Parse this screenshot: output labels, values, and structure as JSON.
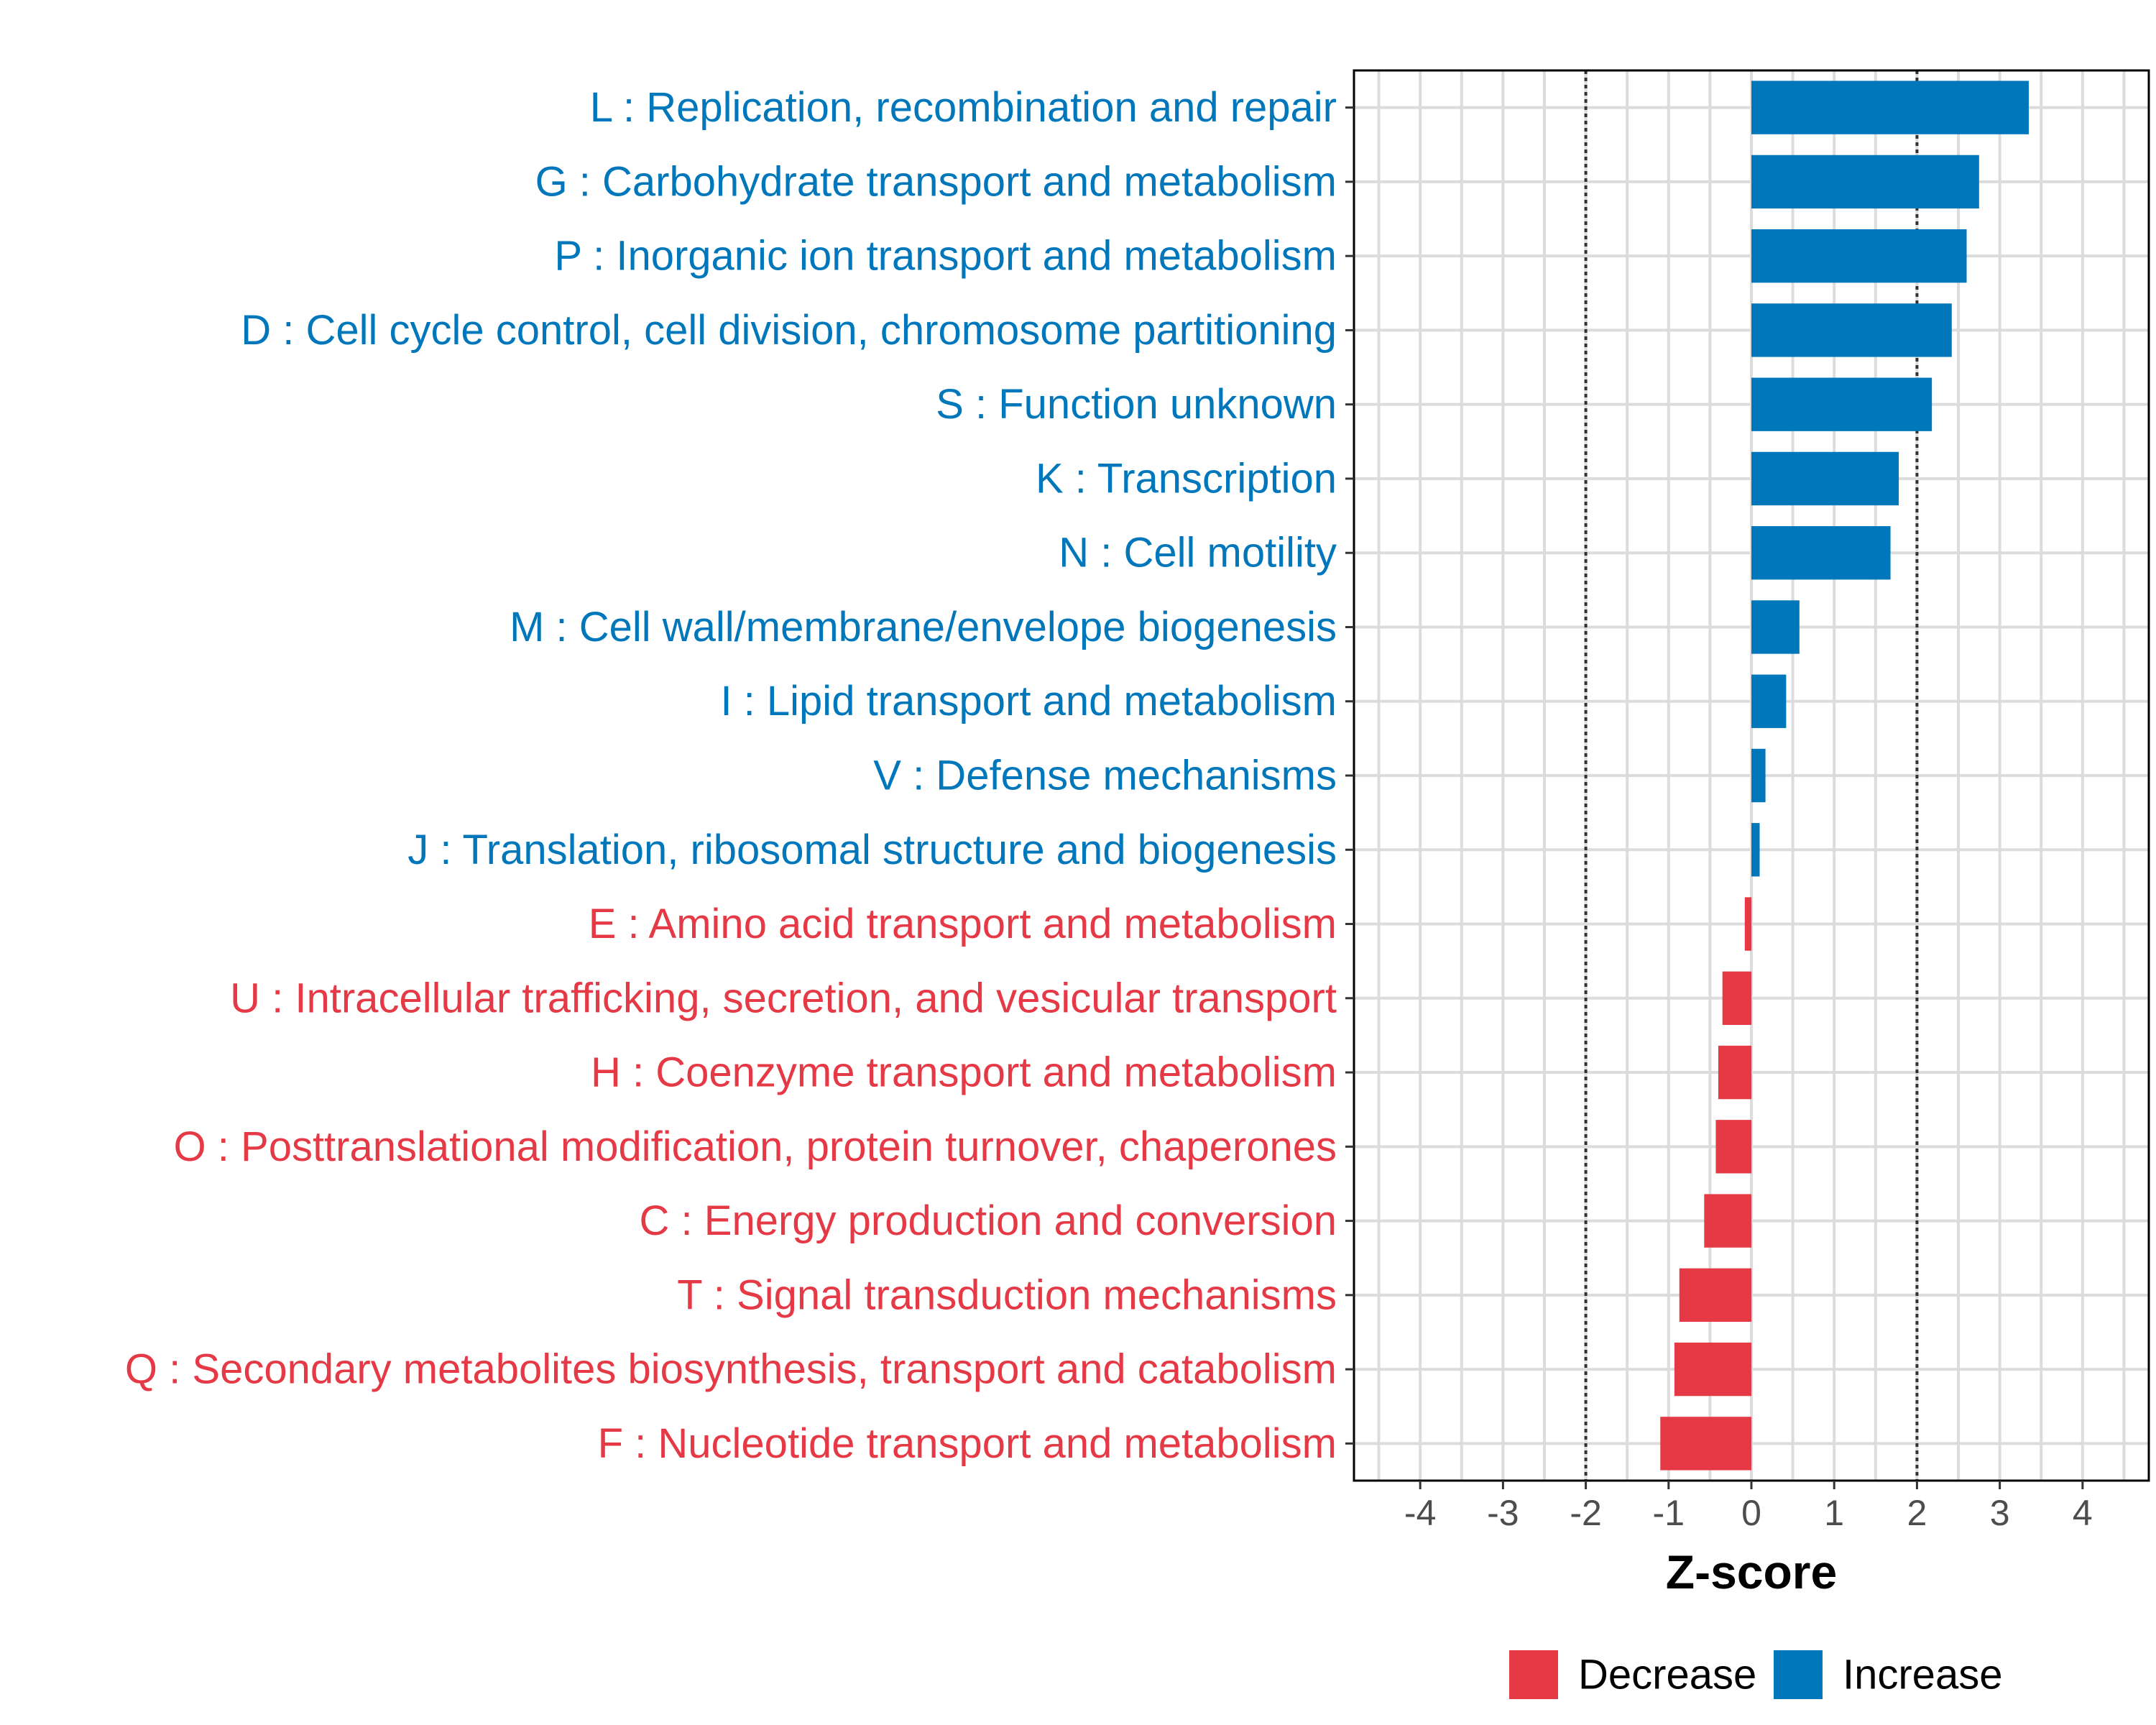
{
  "chart_data": {
    "type": "bar",
    "orientation": "horizontal",
    "xlabel": "Z-score",
    "xlim": [
      -4.8,
      4.8
    ],
    "xticks": [
      -4,
      -3,
      -2,
      -1,
      0,
      1,
      2,
      3,
      4
    ],
    "xtick_labels": [
      "-4",
      "-3",
      "-2",
      "-1",
      "0",
      "1",
      "2",
      "3",
      "4"
    ],
    "reference_lines": [
      -2,
      2
    ],
    "grid": true,
    "legend_position": "bottom",
    "colors": {
      "Decrease": "#e63946",
      "Increase": "#0077bb"
    },
    "legend": [
      {
        "name": "Decrease",
        "color": "#e63946"
      },
      {
        "name": "Increase",
        "color": "#0077bb"
      }
    ],
    "categories": [
      "L : Replication, recombination and repair",
      "G : Carbohydrate transport and metabolism",
      "P : Inorganic ion transport and metabolism",
      "D : Cell cycle control, cell division, chromosome partitioning",
      "S : Function unknown",
      "K : Transcription",
      "N : Cell motility",
      "M : Cell wall/membrane/envelope biogenesis",
      "I : Lipid transport and metabolism",
      "V : Defense mechanisms",
      "J : Translation, ribosomal structure and biogenesis",
      "E : Amino acid transport and metabolism",
      "U : Intracellular trafficking, secretion, and vesicular transport",
      "H : Coenzyme transport and metabolism",
      "O : Posttranslational modification, protein turnover, chaperones",
      "C : Energy production and conversion",
      "T : Signal transduction mechanisms",
      "Q : Secondary metabolites biosynthesis, transport and catabolism",
      "F : Nucleotide transport and metabolism"
    ],
    "values": [
      3.35,
      2.75,
      2.6,
      2.42,
      2.18,
      1.78,
      1.68,
      0.58,
      0.42,
      0.17,
      0.1,
      -0.08,
      -0.35,
      -0.4,
      -0.43,
      -0.57,
      -0.87,
      -0.93,
      -1.1
    ],
    "groups": [
      "Increase",
      "Increase",
      "Increase",
      "Increase",
      "Increase",
      "Increase",
      "Increase",
      "Increase",
      "Increase",
      "Increase",
      "Increase",
      "Decrease",
      "Decrease",
      "Decrease",
      "Decrease",
      "Decrease",
      "Decrease",
      "Decrease",
      "Decrease"
    ]
  }
}
